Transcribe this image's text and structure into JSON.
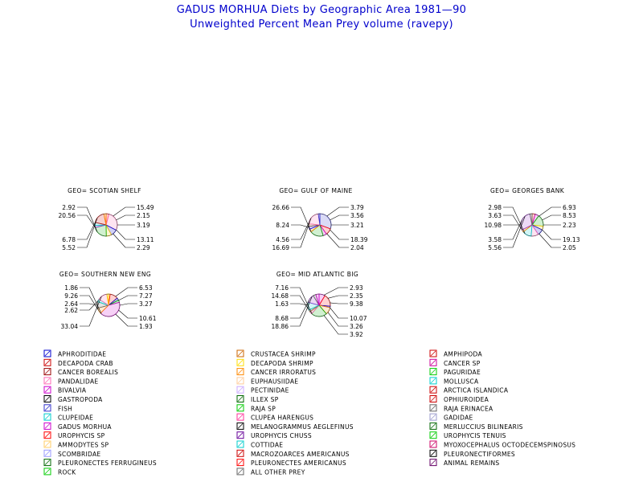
{
  "titles": {
    "line1": "GADUS MORHUA Diets by Geographic Area 1981—90",
    "line2": "Unweighted Percent Mean Prey volume (ravepy)"
  },
  "chart_data": {
    "type": "pie",
    "panels": [
      {
        "title": "GEO= SCOTIAN SHELF",
        "left_labels": [
          "2.92",
          "20.56",
          "6.78",
          "5.52"
        ],
        "right_labels": [
          "15.49",
          "2.15",
          "3.19",
          "13.11",
          "2.29"
        ],
        "colors": [
          "#ff0000",
          "#ff69b4",
          "#0000cc",
          "#ffcc00",
          "#00aa00",
          "#9933cc",
          "#00cccc",
          "#cc0000",
          "#ff8800",
          "#666666"
        ]
      },
      {
        "title": "GEO= GULF OF MAINE",
        "left_labels": [
          "26.66",
          "8.24",
          "4.56",
          "16.69"
        ],
        "right_labels": [
          "3.79",
          "3.56",
          "3.21",
          "18.39",
          "2.04"
        ],
        "colors": [
          "#3333cc",
          "#ff0000",
          "#cc00cc",
          "#00aa00",
          "#ff8800",
          "#0000ff",
          "#996633",
          "#ff69b4"
        ]
      },
      {
        "title": "GEO= GEORGES BANK",
        "left_labels": [
          "2.98",
          "3.63",
          "10.98",
          "3.58",
          "5.56"
        ],
        "right_labels": [
          "6.93",
          "8.53",
          "2.23",
          "19.13",
          "2.05"
        ],
        "colors": [
          "#ff0000",
          "#cc00cc",
          "#00aa00",
          "#ffcc00",
          "#0000cc",
          "#ff69b4",
          "#00cccc",
          "#ff8800",
          "#9933cc",
          "#666666"
        ]
      },
      {
        "title": "GEO= SOUTHERN NEW ENG",
        "left_labels": [
          "1.86",
          "9.26",
          "2.64",
          "2.62",
          "33.04"
        ],
        "right_labels": [
          "6.53",
          "7.27",
          "3.27",
          "10.61",
          "1.93"
        ],
        "colors": [
          "#ffcc00",
          "#ff0000",
          "#0000cc",
          "#00aa00",
          "#cc00cc",
          "#ff8800",
          "#666666",
          "#00cccc",
          "#ff69b4"
        ]
      },
      {
        "title": "GEO= MID ATLANTIC BIG",
        "left_labels": [
          "7.16",
          "14.68",
          "1.63",
          "8.68",
          "18.86"
        ],
        "right_labels": [
          "2.93",
          "2.35",
          "9.38",
          "10.07",
          "3.26",
          "3.92"
        ],
        "colors": [
          "#cc00cc",
          "#ff0000",
          "#0000cc",
          "#ff8800",
          "#00aa00",
          "#ff69b4",
          "#996633",
          "#00cccc",
          "#9933cc",
          "#666666"
        ]
      }
    ],
    "legend": [
      {
        "label": "APHRODITIDAE",
        "color": "#0000cc"
      },
      {
        "label": "DECAPODA CRAB",
        "color": "#cc0000"
      },
      {
        "label": "CANCER BOREALIS",
        "color": "#990000"
      },
      {
        "label": "PANDALIDAE",
        "color": "#ff69b4"
      },
      {
        "label": "BIVALVIA",
        "color": "#cc00cc"
      },
      {
        "label": "GASTROPODA",
        "color": "#000000"
      },
      {
        "label": "FISH",
        "color": "#3333cc"
      },
      {
        "label": "CLUPEIDAE",
        "color": "#00cccc"
      },
      {
        "label": "GADUS MORHUA",
        "color": "#cc00cc"
      },
      {
        "label": "UROPHYCIS SP",
        "color": "#ff0000"
      },
      {
        "label": "AMMODYTES SP",
        "color": "#ffcc66"
      },
      {
        "label": "SCOMBRIDAE",
        "color": "#9999ff"
      },
      {
        "label": "PLEURONECTES FERRUGINEUS",
        "color": "#006600"
      },
      {
        "label": "ROCK",
        "color": "#00cc00"
      },
      {
        "label": "CRUSTACEA SHRIMP",
        "color": "#cc6600"
      },
      {
        "label": "DECAPODA SHRIMP",
        "color": "#ffdd00"
      },
      {
        "label": "CANCER IRRORATUS",
        "color": "#ff8800"
      },
      {
        "label": "EUPHAUSIIDAE",
        "color": "#ffcc99"
      },
      {
        "label": "PECTINIDAE",
        "color": "#ccaaff"
      },
      {
        "label": "ILLEX SP",
        "color": "#006600"
      },
      {
        "label": "RAJA SP",
        "color": "#00cc00"
      },
      {
        "label": "CLUPEA HARENGUS",
        "color": "#ff3399"
      },
      {
        "label": "MELANOGRAMMUS AEGLEFINUS",
        "color": "#000000"
      },
      {
        "label": "UROPHYCIS CHUSS",
        "color": "#660099"
      },
      {
        "label": "COTTIDAE",
        "color": "#00cccc"
      },
      {
        "label": "MACROZOARCES AMERICANUS",
        "color": "#cc0000"
      },
      {
        "label": "PLEURONECTES AMERICANUS",
        "color": "#ff0000"
      },
      {
        "label": "ALL OTHER PREY",
        "color": "#666666"
      },
      {
        "label": "AMPHIPODA",
        "color": "#cc0000"
      },
      {
        "label": "CANCER SP",
        "color": "#cc0099"
      },
      {
        "label": "PAGURIDAE",
        "color": "#00cc00"
      },
      {
        "label": "MOLLUSCA",
        "color": "#00cccc"
      },
      {
        "label": "ARCTICA ISLANDICA",
        "color": "#cc0000"
      },
      {
        "label": "OPHIUROIDEA",
        "color": "#cc0000"
      },
      {
        "label": "RAJA ERINACEA",
        "color": "#666666"
      },
      {
        "label": "GADIDAE",
        "color": "#9999cc"
      },
      {
        "label": "MERLUCCIUS BILINEARIS",
        "color": "#006600"
      },
      {
        "label": "UROPHYCIS TENUIS",
        "color": "#00cc00"
      },
      {
        "label": "MYOXOCEPHALUS OCTODECEMSPINOSUS",
        "color": "#cc0066"
      },
      {
        "label": "PLEURONECTIFORMES",
        "color": "#000000"
      },
      {
        "label": "ANIMAL REMAINS",
        "color": "#660066"
      }
    ]
  }
}
